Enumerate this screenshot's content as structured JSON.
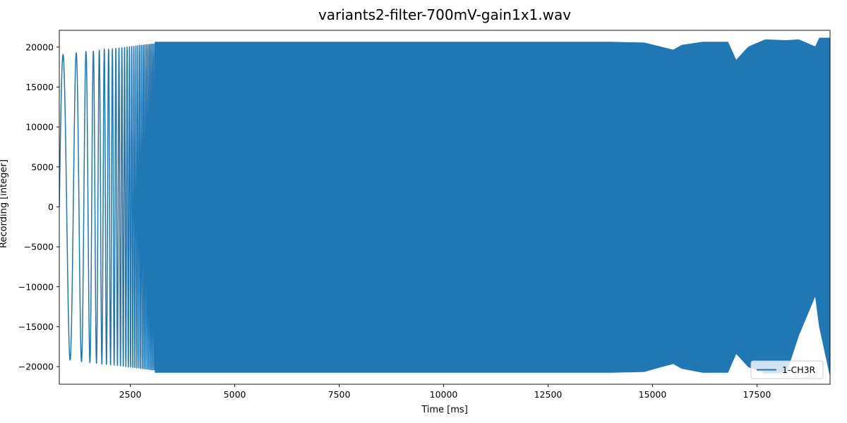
{
  "chart_data": {
    "type": "line",
    "title": "variants2-filter-700mV-gain1x1.wav",
    "xlabel": "Time [ms]",
    "ylabel": "Recording [integer]",
    "xlim": [
      800,
      19250
    ],
    "ylim": [
      -22200,
      22100
    ],
    "x_ticks": [
      2500,
      5000,
      7500,
      10000,
      12500,
      15000,
      17500
    ],
    "x_tick_labels": [
      "2500",
      "5000",
      "7500",
      "10000",
      "12500",
      "15000",
      "17500"
    ],
    "y_ticks": [
      -20000,
      -15000,
      -10000,
      -5000,
      0,
      5000,
      10000,
      15000,
      20000
    ],
    "y_tick_labels": [
      "−20000",
      "−15000",
      "−10000",
      "−5000",
      "0",
      "5000",
      "10000",
      "15000",
      "20000"
    ],
    "grid": false,
    "legend_position": "lower-right",
    "series": [
      {
        "name": "1-CH3R",
        "color": "#1f77b4",
        "oscillation_start_ms": 800,
        "oscillation_end_ms": 3100,
        "oscillation_amplitude_start": 19000,
        "oscillation_amplitude_end": 20500,
        "envelope": {
          "x": [
            3100,
            3600,
            4200,
            5000,
            8000,
            12000,
            14000,
            14800,
            15200,
            15500,
            15700,
            16200,
            16800,
            17000,
            17300,
            17700,
            18200,
            18500,
            18900,
            19000,
            19250
          ],
          "upper": [
            20600,
            20600,
            20600,
            20600,
            20600,
            20600,
            20600,
            20500,
            20000,
            19600,
            20200,
            20600,
            20600,
            18300,
            20000,
            20900,
            20800,
            20900,
            20000,
            21100,
            21100
          ],
          "lower": [
            -20700,
            -20700,
            -20700,
            -20700,
            -20700,
            -20700,
            -20700,
            -20600,
            -20000,
            -19600,
            -20200,
            -20700,
            -20700,
            -18300,
            -20000,
            -20800,
            -20700,
            -16000,
            -11000,
            -15000,
            -21000
          ]
        }
      }
    ]
  }
}
